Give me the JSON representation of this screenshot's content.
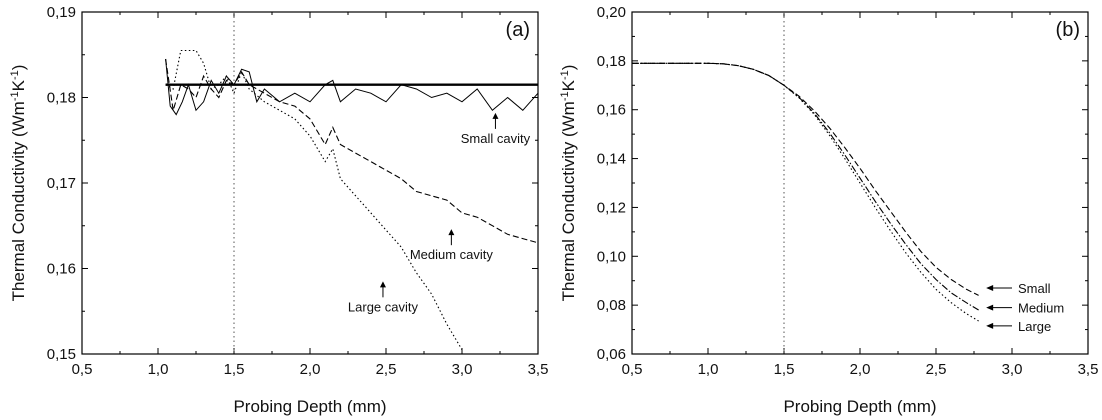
{
  "chart_data": [
    {
      "type": "line",
      "panel_label": "(a)",
      "xlabel": "Probing Depth (mm)",
      "ylabel": "Thermal Conductivity (Wm",
      "ylabel_sup1": "-1",
      "ylabel_mid": "K",
      "ylabel_sup2": "-1",
      "ylabel_end": ")",
      "xlim": [
        0.5,
        3.5
      ],
      "ylim": [
        0.15,
        0.19
      ],
      "x_ticks": [
        "0,5",
        "1,0",
        "1,5",
        "2,0",
        "2,5",
        "3,0",
        "3,5"
      ],
      "y_ticks": [
        "0,15",
        "0,16",
        "0,17",
        "0,18",
        "0,19"
      ],
      "grid": false,
      "reference_line": {
        "y": 0.1815,
        "x_range": [
          1.05,
          3.5
        ]
      },
      "vline_x": 1.5,
      "series": [
        {
          "label": "Small cavity",
          "style": "solid",
          "x": [
            1.05,
            1.08,
            1.12,
            1.16,
            1.2,
            1.25,
            1.3,
            1.35,
            1.4,
            1.45,
            1.5,
            1.55,
            1.6,
            1.65,
            1.7,
            1.8,
            1.9,
            2.0,
            2.1,
            2.15,
            2.2,
            2.3,
            2.4,
            2.5,
            2.6,
            2.7,
            2.8,
            2.9,
            3.0,
            3.1,
            3.2,
            3.3,
            3.4,
            3.5
          ],
          "y": [
            0.1845,
            0.179,
            0.178,
            0.1795,
            0.1815,
            0.1785,
            0.1795,
            0.182,
            0.1805,
            0.1825,
            0.1815,
            0.1833,
            0.183,
            0.1795,
            0.181,
            0.1795,
            0.1805,
            0.1795,
            0.1815,
            0.182,
            0.1795,
            0.181,
            0.1805,
            0.1795,
            0.1815,
            0.181,
            0.18,
            0.1805,
            0.1795,
            0.181,
            0.1785,
            0.18,
            0.1785,
            0.1805
          ]
        },
        {
          "label": "Medium cavity",
          "style": "dashed",
          "x": [
            1.05,
            1.1,
            1.15,
            1.2,
            1.25,
            1.3,
            1.35,
            1.4,
            1.45,
            1.5,
            1.55,
            1.6,
            1.7,
            1.8,
            1.9,
            2.0,
            2.1,
            2.15,
            2.2,
            2.3,
            2.4,
            2.5,
            2.6,
            2.7,
            2.8,
            2.9,
            3.0,
            3.1,
            3.2,
            3.3,
            3.4,
            3.5
          ],
          "y": [
            0.1845,
            0.1785,
            0.1815,
            0.181,
            0.18,
            0.1825,
            0.181,
            0.18,
            0.182,
            0.1815,
            0.183,
            0.1815,
            0.1805,
            0.1795,
            0.179,
            0.1775,
            0.1745,
            0.1765,
            0.1745,
            0.1735,
            0.1725,
            0.1715,
            0.1705,
            0.169,
            0.1685,
            0.168,
            0.1665,
            0.166,
            0.165,
            0.164,
            0.1635,
            0.163
          ]
        },
        {
          "label": "Large cavity",
          "style": "dotted",
          "x": [
            1.05,
            1.1,
            1.15,
            1.2,
            1.25,
            1.3,
            1.35,
            1.4,
            1.45,
            1.5,
            1.55,
            1.6,
            1.7,
            1.8,
            1.9,
            2.0,
            2.1,
            2.15,
            2.2,
            2.3,
            2.4,
            2.5,
            2.6,
            2.7,
            2.8,
            2.9,
            3.0
          ],
          "y": [
            0.1815,
            0.181,
            0.1855,
            0.1855,
            0.1855,
            0.184,
            0.181,
            0.1815,
            0.1825,
            0.1805,
            0.183,
            0.181,
            0.1795,
            0.1785,
            0.1775,
            0.1755,
            0.1725,
            0.174,
            0.1705,
            0.1685,
            0.1665,
            0.1645,
            0.1625,
            0.1595,
            0.157,
            0.1535,
            0.1505
          ]
        }
      ],
      "annotations": [
        {
          "text": "Small cavity",
          "arrow_x": 3.22,
          "arrow_y": 0.1782
        },
        {
          "text": "Medium cavity",
          "arrow_x": 2.93,
          "arrow_y": 0.1646
        },
        {
          "text": "Large cavity",
          "arrow_x": 2.48,
          "arrow_y": 0.1585
        }
      ]
    },
    {
      "type": "line",
      "panel_label": "(b)",
      "xlabel": "Probing Depth (mm)",
      "ylabel": "Thermal Conductivity (Wm",
      "ylabel_sup1": "-1",
      "ylabel_mid": "K",
      "ylabel_sup2": "-1",
      "ylabel_end": ")",
      "xlim": [
        0.5,
        3.5
      ],
      "ylim": [
        0.06,
        0.2
      ],
      "x_ticks": [
        "0,5",
        "1,0",
        "1,5",
        "2,0",
        "2,5",
        "3,0",
        "3,5"
      ],
      "y_ticks": [
        "0,06",
        "0,08",
        "0,10",
        "0,12",
        "0,14",
        "0,16",
        "0,18",
        "0,20"
      ],
      "grid": false,
      "vline_x": 1.5,
      "series": [
        {
          "label": "Small",
          "style": "dashed",
          "x": [
            0.5,
            0.8,
            1.0,
            1.1,
            1.2,
            1.3,
            1.4,
            1.5,
            1.6,
            1.7,
            1.8,
            1.9,
            2.0,
            2.1,
            2.2,
            2.3,
            2.4,
            2.5,
            2.6,
            2.7,
            2.78
          ],
          "y": [
            0.179,
            0.179,
            0.179,
            0.1788,
            0.178,
            0.1765,
            0.174,
            0.17,
            0.1655,
            0.1595,
            0.1525,
            0.1445,
            0.136,
            0.127,
            0.1185,
            0.11,
            0.102,
            0.0955,
            0.0905,
            0.0865,
            0.084
          ]
        },
        {
          "label": "Medium",
          "style": "dashdot",
          "x": [
            0.5,
            0.8,
            1.0,
            1.1,
            1.2,
            1.3,
            1.4,
            1.5,
            1.6,
            1.7,
            1.8,
            1.9,
            2.0,
            2.1,
            2.2,
            2.3,
            2.4,
            2.5,
            2.6,
            2.7,
            2.78
          ],
          "y": [
            0.179,
            0.179,
            0.179,
            0.1788,
            0.178,
            0.1765,
            0.174,
            0.17,
            0.165,
            0.1585,
            0.1505,
            0.1415,
            0.132,
            0.1225,
            0.1135,
            0.105,
            0.097,
            0.0905,
            0.085,
            0.081,
            0.078
          ]
        },
        {
          "label": "Large",
          "style": "dotted",
          "x": [
            0.5,
            0.8,
            1.0,
            1.1,
            1.2,
            1.3,
            1.4,
            1.5,
            1.6,
            1.7,
            1.8,
            1.9,
            2.0,
            2.1,
            2.2,
            2.3,
            2.4,
            2.5,
            2.6,
            2.7,
            2.78
          ],
          "y": [
            0.179,
            0.179,
            0.179,
            0.1788,
            0.178,
            0.1765,
            0.174,
            0.17,
            0.1648,
            0.158,
            0.1495,
            0.14,
            0.13,
            0.12,
            0.1105,
            0.1015,
            0.0935,
            0.0865,
            0.081,
            0.0765,
            0.0735
          ]
        }
      ],
      "legend_labels": [
        {
          "text": "Small",
          "y": 0.087
        },
        {
          "text": "Medium",
          "y": 0.079
        },
        {
          "text": "Large",
          "y": 0.0715
        }
      ]
    }
  ]
}
